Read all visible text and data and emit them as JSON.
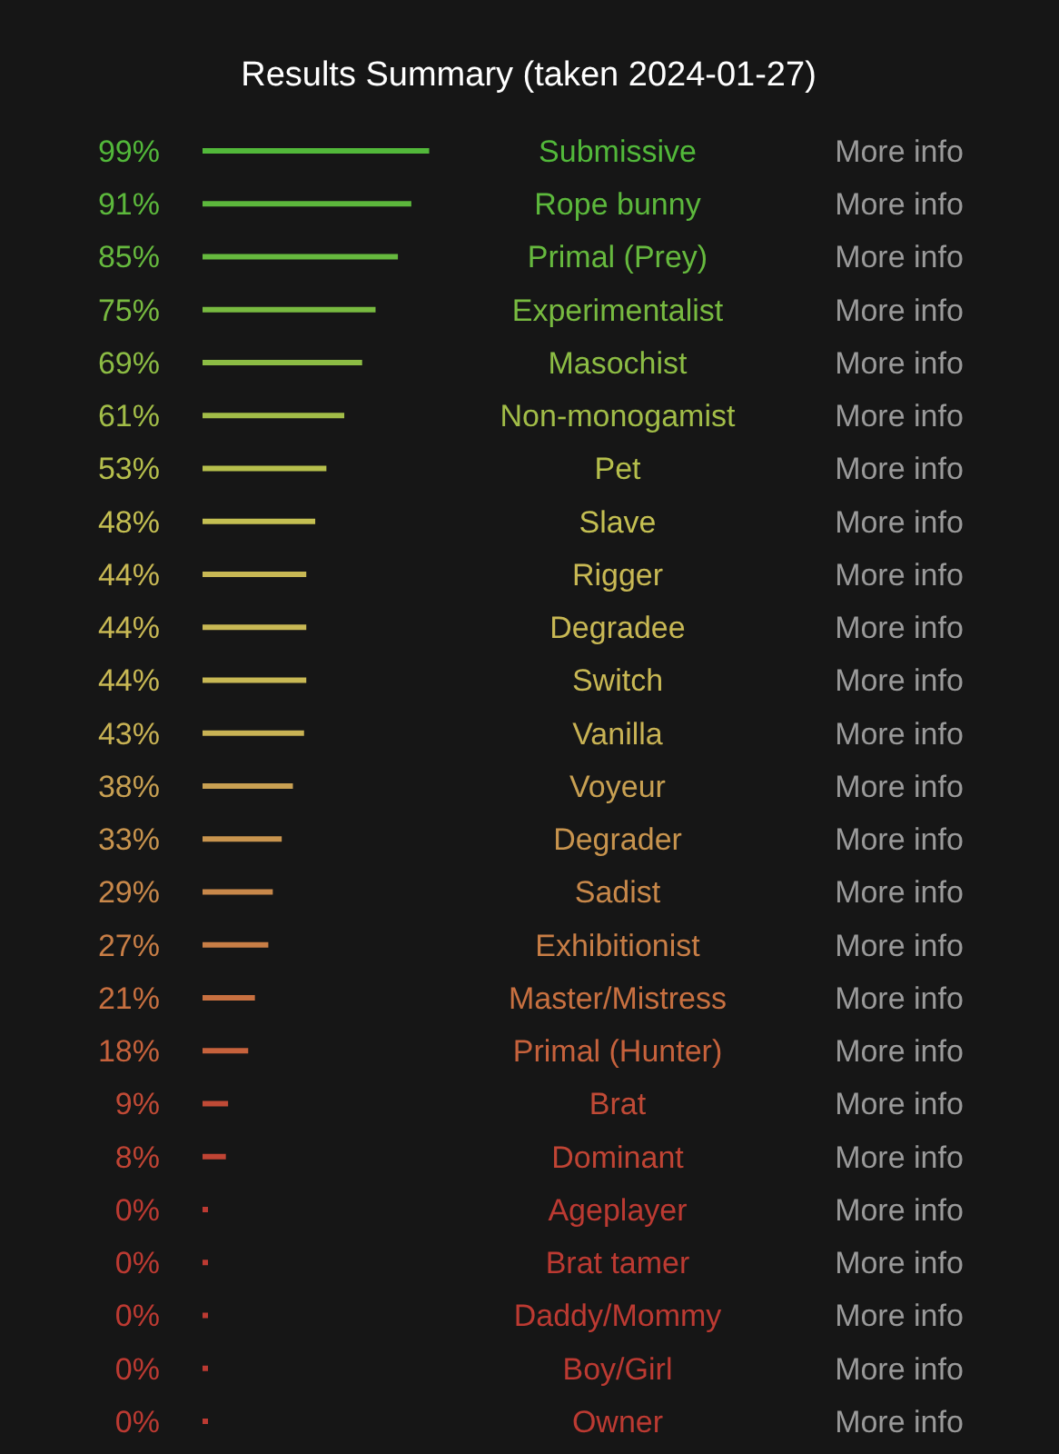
{
  "chart_data": {
    "type": "bar",
    "orientation": "horizontal",
    "title": "Results Summary (taken 2024-01-27)",
    "categories": [
      "Submissive",
      "Rope bunny",
      "Primal (Prey)",
      "Experimentalist",
      "Masochist",
      "Non-monogamist",
      "Pet",
      "Slave",
      "Rigger",
      "Degradee",
      "Switch",
      "Vanilla",
      "Voyeur",
      "Degrader",
      "Sadist",
      "Exhibitionist",
      "Master/Mistress",
      "Primal (Hunter)",
      "Brat",
      "Dominant",
      "Ageplayer",
      "Brat tamer",
      "Daddy/Mommy",
      "Boy/Girl",
      "Owner"
    ],
    "values": [
      99,
      91,
      85,
      75,
      69,
      61,
      53,
      48,
      44,
      44,
      44,
      43,
      38,
      33,
      29,
      27,
      21,
      18,
      9,
      8,
      0,
      0,
      0,
      0,
      0
    ],
    "value_labels": [
      "99%",
      "91%",
      "85%",
      "75%",
      "69%",
      "61%",
      "53%",
      "48%",
      "44%",
      "44%",
      "44%",
      "43%",
      "38%",
      "33%",
      "29%",
      "27%",
      "21%",
      "18%",
      "9%",
      "8%",
      "0%",
      "0%",
      "0%",
      "0%",
      "0%"
    ],
    "colors": [
      "#52b83a",
      "#5cb83c",
      "#66b93e",
      "#78ba40",
      "#8cbc44",
      "#a2bd48",
      "#b6bf4c",
      "#c4bf52",
      "#c8b854",
      "#c8b854",
      "#c8b854",
      "#c8b254",
      "#c8a052",
      "#c8944e",
      "#c8884a",
      "#c87e46",
      "#c87040",
      "#c6623c",
      "#c04a36",
      "#c04434",
      "#bc3a32",
      "#bc3a32",
      "#bc3a32",
      "#bc3a32",
      "#bc3a32"
    ],
    "xlim": [
      0,
      100
    ],
    "tick_labels": false,
    "annotations": [
      "More info",
      "More info",
      "More info",
      "More info",
      "More info",
      "More info",
      "More info",
      "More info",
      "More info",
      "More info",
      "More info",
      "More info",
      "More info",
      "More info",
      "More info",
      "More info",
      "More info",
      "More info",
      "More info",
      "More info",
      "More info",
      "More info",
      "More info",
      "More info",
      "More info"
    ]
  }
}
